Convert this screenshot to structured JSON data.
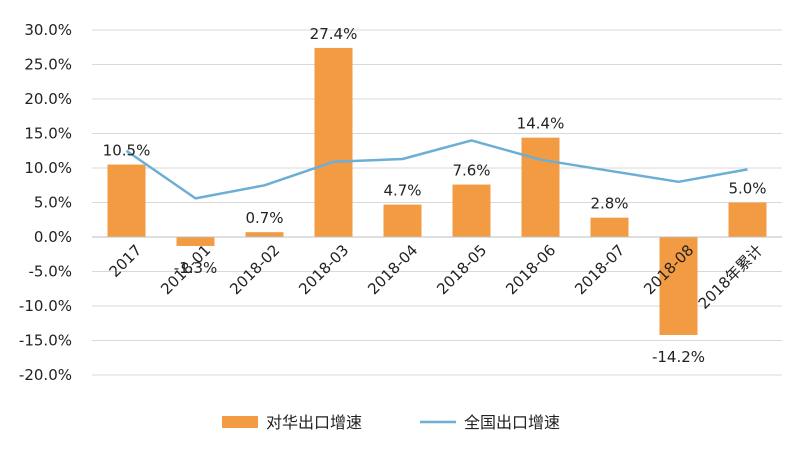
{
  "chart_data": {
    "type": "bar",
    "categories": [
      "2017",
      "2018-01",
      "2018-02",
      "2018-03",
      "2018-04",
      "2018-05",
      "2018-06",
      "2018-07",
      "2018-08",
      "2018年累计"
    ],
    "series": [
      {
        "name": "对华出口增速",
        "kind": "bar",
        "color": "#F39B43",
        "values": [
          10.5,
          -1.3,
          0.7,
          27.4,
          4.7,
          7.6,
          14.4,
          2.8,
          -14.2,
          5.0
        ],
        "labels": [
          "10.5%",
          "-1.3%",
          "0.7%",
          "27.4%",
          "4.7%",
          "7.6%",
          "14.4%",
          "2.8%",
          "-14.2%",
          "5.0%"
        ]
      },
      {
        "name": "全国出口增速",
        "kind": "line",
        "color": "#6BAED6",
        "values": [
          12.5,
          5.6,
          7.5,
          10.9,
          11.3,
          14.0,
          11.2,
          9.6,
          8.0,
          9.8
        ]
      }
    ],
    "ylim": [
      -20,
      30
    ],
    "yticks": [
      "30.0%",
      "25.0%",
      "20.0%",
      "15.0%",
      "10.0%",
      "5.0%",
      "0.0%",
      "-5.0%",
      "-10.0%",
      "-15.0%",
      "-20.0%"
    ],
    "ytick_values": [
      30,
      25,
      20,
      15,
      10,
      5,
      0,
      -5,
      -10,
      -15,
      -20
    ],
    "grid": true,
    "legend": "bottom-center",
    "title": "",
    "xlabel": "",
    "ylabel": ""
  }
}
